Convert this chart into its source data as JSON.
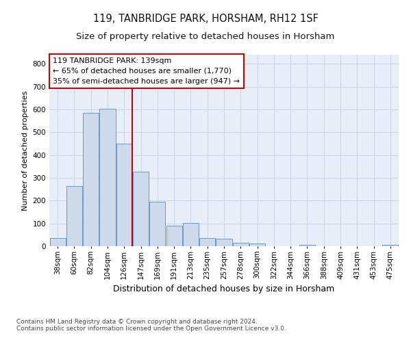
{
  "title1": "119, TANBRIDGE PARK, HORSHAM, RH12 1SF",
  "title2": "Size of property relative to detached houses in Horsham",
  "xlabel": "Distribution of detached houses by size in Horsham",
  "ylabel": "Number of detached properties",
  "categories": [
    "38sqm",
    "60sqm",
    "82sqm",
    "104sqm",
    "126sqm",
    "147sqm",
    "169sqm",
    "191sqm",
    "213sqm",
    "235sqm",
    "257sqm",
    "278sqm",
    "300sqm",
    "322sqm",
    "344sqm",
    "366sqm",
    "388sqm",
    "409sqm",
    "431sqm",
    "453sqm",
    "475sqm"
  ],
  "values": [
    36,
    263,
    585,
    603,
    450,
    328,
    196,
    91,
    101,
    36,
    32,
    15,
    11,
    0,
    0,
    5,
    0,
    0,
    0,
    0,
    6
  ],
  "bar_color": "#ccdaec",
  "bar_edge_color": "#6699cc",
  "vline_x": 4.5,
  "vline_color": "#cc0000",
  "annotation_text": "119 TANBRIDGE PARK: 139sqm\n← 65% of detached houses are smaller (1,770)\n35% of semi-detached houses are larger (947) →",
  "annotation_box_color": "#ffffff",
  "annotation_box_edge_color": "#cc0000",
  "ylim": [
    0,
    840
  ],
  "yticks": [
    0,
    100,
    200,
    300,
    400,
    500,
    600,
    700,
    800
  ],
  "grid_color": "#c8d4e4",
  "background_color": "#e8eef8",
  "footer_text": "Contains HM Land Registry data © Crown copyright and database right 2024.\nContains public sector information licensed under the Open Government Licence v3.0.",
  "title1_fontsize": 10.5,
  "title2_fontsize": 9.5,
  "xlabel_fontsize": 9,
  "ylabel_fontsize": 8,
  "tick_fontsize": 7.5,
  "annotation_fontsize": 8,
  "footer_fontsize": 6.5
}
